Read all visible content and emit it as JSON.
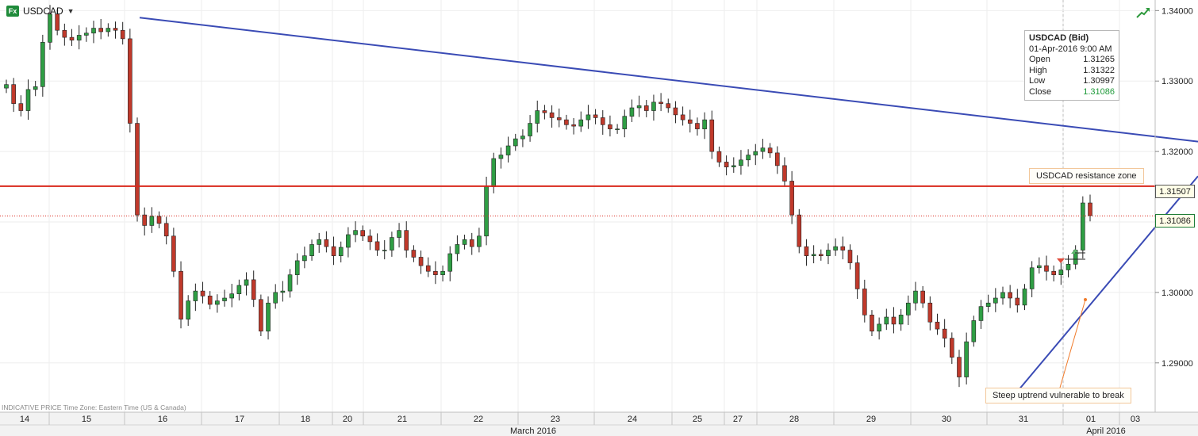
{
  "header": {
    "badge": "Fx",
    "symbol": "USDCAD"
  },
  "info_box": {
    "title": "USDCAD (Bid)",
    "datetime": "01-Apr-2016 9:00 AM",
    "rows": [
      {
        "label": "Open",
        "value": "1.31265"
      },
      {
        "label": "High",
        "value": "1.31322"
      },
      {
        "label": "Low",
        "value": "1.30997"
      },
      {
        "label": "Close",
        "value": "1.31086"
      }
    ]
  },
  "annotations": {
    "resistance": "USDCAD resistance zone",
    "uptrend": "Steep uptrend vulnerable to break"
  },
  "price_tags": {
    "resistance": "1.31507",
    "close": "1.31086"
  },
  "footnote": "INDICATIVE PRICE   Time Zone: Eastern Time (US & Canada)",
  "chart_data": {
    "type": "line",
    "title": "",
    "ylim": [
      1.283,
      1.3415
    ],
    "yticks": [
      "1.34000",
      "1.33000",
      "1.32000",
      "1.31000",
      "1.30000",
      "1.29000"
    ],
    "ytick_values": [
      1.34,
      1.33,
      1.32,
      1.31,
      1.3,
      1.29
    ],
    "day_labels": [
      "14",
      "15",
      "16",
      "17",
      "18",
      "20",
      "21",
      "22",
      "23",
      "24",
      "25",
      "27",
      "28",
      "29",
      "30",
      "31",
      "01",
      "03"
    ],
    "month_labels": [
      "March 2016",
      "April 2016"
    ],
    "levels": {
      "resistance": 1.31507,
      "last_close": 1.31086
    },
    "trendlines": [
      {
        "name": "downtrend",
        "from": {
          "day": "15",
          "price": 1.339
        },
        "to": {
          "day": "03",
          "price": 1.3214
        }
      },
      {
        "name": "uptrend",
        "from": {
          "day": "31",
          "price": 1.2863
        },
        "to": {
          "day": "03",
          "price": 1.3165
        }
      }
    ],
    "series": [
      {
        "values": [
          1.3295,
          1.3268,
          1.3258,
          1.3288,
          1.3292,
          1.3355,
          1.3395,
          1.3372,
          1.3362,
          1.3358,
          1.3365,
          1.3368,
          1.3375,
          1.337,
          1.3375,
          1.3372,
          1.336,
          1.324,
          1.311,
          1.3095,
          1.3108,
          1.3098,
          1.308,
          1.303,
          1.2962,
          1.2988,
          1.3002,
          1.2995,
          1.2983,
          1.2988,
          1.2992,
          1.2998,
          1.301,
          1.3018,
          1.299,
          1.2945,
          1.2985,
          1.3,
          1.3002,
          1.3025,
          1.3045,
          1.3052,
          1.3068,
          1.3075,
          1.3065,
          1.3052,
          1.3064,
          1.3082,
          1.3088,
          1.308,
          1.3072,
          1.306,
          1.306,
          1.3078,
          1.3088,
          1.306,
          1.305,
          1.3038,
          1.303,
          1.3025,
          1.303,
          1.3055,
          1.3068,
          1.3075,
          1.3065,
          1.308,
          1.315,
          1.319,
          1.3195,
          1.3208,
          1.3218,
          1.3222,
          1.324,
          1.3258,
          1.3255,
          1.3248,
          1.3245,
          1.3238,
          1.3236,
          1.3245,
          1.3252,
          1.3248,
          1.3238,
          1.3232,
          1.3232,
          1.325,
          1.3262,
          1.3265,
          1.3258,
          1.327,
          1.3268,
          1.3262,
          1.3252,
          1.3245,
          1.324,
          1.3232,
          1.3245,
          1.32,
          1.3185,
          1.3178,
          1.318,
          1.3188,
          1.3195,
          1.32,
          1.3205,
          1.3198,
          1.318,
          1.3158,
          1.311,
          1.3065,
          1.3052,
          1.3054,
          1.3052,
          1.306,
          1.3065,
          1.306,
          1.3042,
          1.3005,
          1.2968,
          1.2945,
          1.2955,
          1.2965,
          1.2955,
          1.2968,
          1.2985,
          1.3002,
          1.2985,
          1.2958,
          1.2948,
          1.2935,
          1.2908,
          1.288,
          1.293,
          1.296,
          1.298,
          1.2985,
          1.2992,
          1.3,
          1.2992,
          1.2982,
          1.3005,
          1.3035,
          1.3038,
          1.303,
          1.3025,
          1.3032,
          1.304,
          1.306,
          1.3127,
          1.3109
        ]
      }
    ]
  }
}
